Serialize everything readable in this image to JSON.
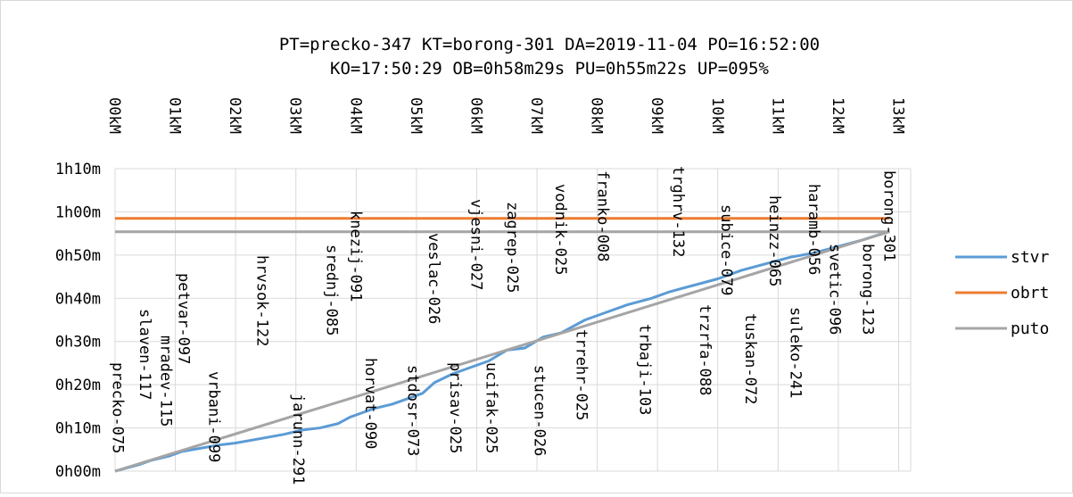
{
  "chart_data": {
    "type": "line",
    "title_lines": [
      "PT=precko-347 KT=borong-301 DA=2019-11-04 PO=16:52:00",
      "KO=17:50:29 OB=0h58m29s PU=0h55m22s UP=095%"
    ],
    "x_unit": "km",
    "y_unit": "minutes",
    "xlim": [
      0,
      13.2
    ],
    "ylim": [
      0,
      70
    ],
    "x_ticks": [
      {
        "v": 0,
        "label": "00kM"
      },
      {
        "v": 1,
        "label": "01kM"
      },
      {
        "v": 2,
        "label": "02kM"
      },
      {
        "v": 3,
        "label": "03kM"
      },
      {
        "v": 4,
        "label": "04kM"
      },
      {
        "v": 5,
        "label": "05kM"
      },
      {
        "v": 6,
        "label": "06kM"
      },
      {
        "v": 7,
        "label": "07kM"
      },
      {
        "v": 8,
        "label": "08kM"
      },
      {
        "v": 9,
        "label": "09kM"
      },
      {
        "v": 10,
        "label": "10kM"
      },
      {
        "v": 11,
        "label": "11kM"
      },
      {
        "v": 12,
        "label": "12kM"
      },
      {
        "v": 13,
        "label": "13kM"
      }
    ],
    "y_ticks": [
      {
        "v": 0,
        "label": "0h00m"
      },
      {
        "v": 10,
        "label": "0h10m"
      },
      {
        "v": 20,
        "label": "0h20m"
      },
      {
        "v": 30,
        "label": "0h30m"
      },
      {
        "v": 40,
        "label": "0h40m"
      },
      {
        "v": 50,
        "label": "0h50m"
      },
      {
        "v": 60,
        "label": "1h00m"
      },
      {
        "v": 70,
        "label": "1h10m"
      }
    ],
    "grid": true,
    "legend_position": "right",
    "series": [
      {
        "name": "stvr",
        "color": "#5b9bd5",
        "x": [
          0,
          0.4,
          0.6,
          0.9,
          1.1,
          1.3,
          1.5,
          1.7,
          2.0,
          2.4,
          2.8,
          3.1,
          3.4,
          3.7,
          3.9,
          4.1,
          4.3,
          4.6,
          4.9,
          5.1,
          5.3,
          5.6,
          5.9,
          6.2,
          6.5,
          6.8,
          7.1,
          7.4,
          7.8,
          8.1,
          8.5,
          8.9,
          9.2,
          9.6,
          10.0,
          10.4,
          10.8,
          11.2,
          11.6,
          12.0,
          12.4,
          12.85
        ],
        "y": [
          0,
          1.5,
          2.5,
          3.5,
          4.5,
          5,
          5.5,
          6,
          6.5,
          7.5,
          8.5,
          9.5,
          10,
          11,
          12.5,
          13.5,
          14.5,
          15.5,
          17,
          18,
          20.5,
          22.5,
          24,
          25.5,
          28,
          28.5,
          31,
          32,
          35,
          36.5,
          38.5,
          40,
          41.5,
          43,
          44.5,
          46.5,
          48,
          49.5,
          50.5,
          52,
          53.5,
          55.5
        ]
      },
      {
        "name": "obrt",
        "color": "#ed7d31",
        "x": [
          0,
          12.85
        ],
        "y": [
          58.5,
          58.5
        ]
      },
      {
        "name": "puto",
        "color": "#a5a5a5",
        "x": [
          0,
          12.85
        ],
        "y": [
          55.4,
          55.4
        ],
        "x2": [
          0,
          12.85
        ],
        "y2": [
          0,
          55.4
        ]
      }
    ],
    "stops": [
      {
        "label": "precko-075",
        "x": 0.05,
        "anchor": "down"
      },
      {
        "label": "slaven-117",
        "x": 0.5,
        "anchor": "down"
      },
      {
        "label": "mradev-115",
        "x": 0.85,
        "anchor": "down"
      },
      {
        "label": "petvar-097",
        "x": 1.15,
        "anchor": "down"
      },
      {
        "label": "vrbani-099",
        "x": 1.65,
        "anchor": "down"
      },
      {
        "label": "hrvsok-122",
        "x": 2.45,
        "anchor": "down"
      },
      {
        "label": "jarunn-291",
        "x": 3.05,
        "anchor": "down"
      },
      {
        "label": "srednj-085",
        "x": 3.6,
        "anchor": "down"
      },
      {
        "label": "knezij-091",
        "x": 4.0,
        "anchor": "down"
      },
      {
        "label": "horvat-090",
        "x": 4.25,
        "anchor": "down"
      },
      {
        "label": "stdosr-073",
        "x": 4.95,
        "anchor": "down"
      },
      {
        "label": "veslac-026",
        "x": 5.3,
        "anchor": "down"
      },
      {
        "label": "prisav-025",
        "x": 5.65,
        "anchor": "down"
      },
      {
        "label": "vjesni-027",
        "x": 6.0,
        "anchor": "down"
      },
      {
        "label": "ucifak-025",
        "x": 6.25,
        "anchor": "down"
      },
      {
        "label": "zagrep-025",
        "x": 6.6,
        "anchor": "down"
      },
      {
        "label": "stucen-026",
        "x": 7.05,
        "anchor": "down"
      },
      {
        "label": "vodnik-025",
        "x": 7.4,
        "anchor": "down"
      },
      {
        "label": "trrehr-025",
        "x": 7.75,
        "anchor": "down"
      },
      {
        "label": "franko-008",
        "x": 8.1,
        "anchor": "down"
      },
      {
        "label": "trbaji-103",
        "x": 8.8,
        "anchor": "down"
      },
      {
        "label": "trghrv-132",
        "x": 9.35,
        "anchor": "down"
      },
      {
        "label": "trzrfa-088",
        "x": 9.8,
        "anchor": "down"
      },
      {
        "label": "subice-079",
        "x": 10.15,
        "anchor": "down"
      },
      {
        "label": "tuskan-072",
        "x": 10.55,
        "anchor": "down"
      },
      {
        "label": "heinzz-065",
        "x": 10.95,
        "anchor": "down"
      },
      {
        "label": "suleko-241",
        "x": 11.3,
        "anchor": "down"
      },
      {
        "label": "haramb-056",
        "x": 11.6,
        "anchor": "down"
      },
      {
        "label": "svetic-096",
        "x": 11.95,
        "anchor": "down"
      },
      {
        "label": "borong-123",
        "x": 12.5,
        "anchor": "down"
      },
      {
        "label": "borong-301",
        "x": 12.85,
        "anchor": "down"
      }
    ]
  }
}
